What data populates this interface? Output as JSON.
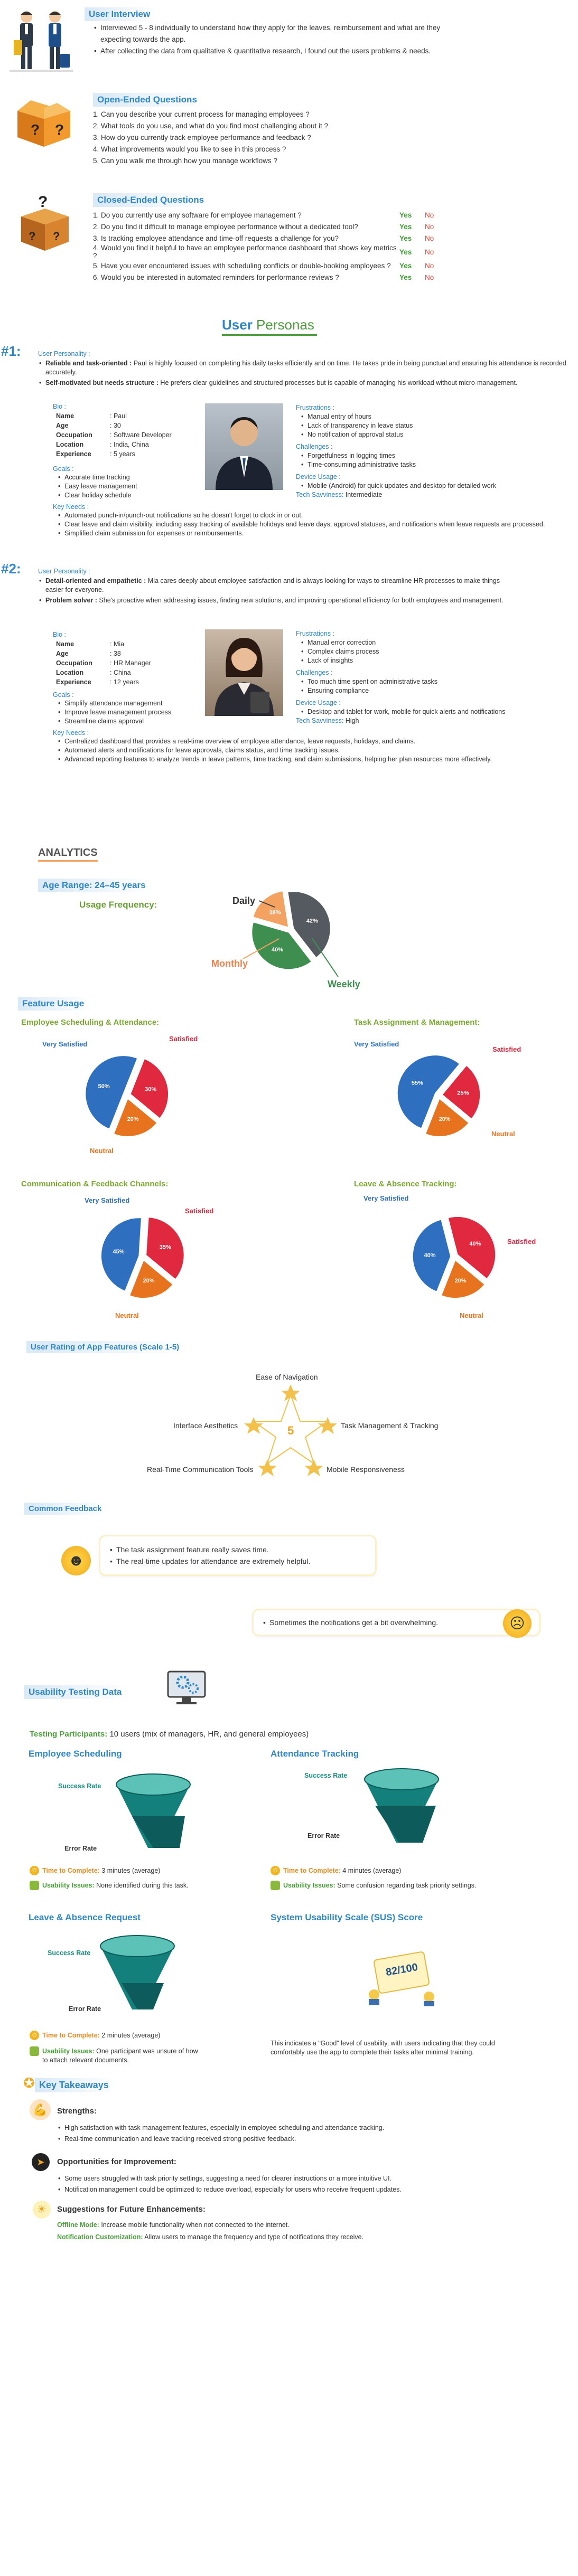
{
  "interview": {
    "title": "User Interview",
    "items": [
      "Interviewed 5 - 8 individually to understand how they apply for the leaves,  reimbursement and what are they expecting towards the app.",
      "After collecting the data from qualitative & quantitative research, I found out  the users problems & needs."
    ]
  },
  "open": {
    "title": "Open-Ended Questions",
    "items": [
      "1. Can you describe your current process for managing employees ?",
      "2. What tools do you use, and what do you find most challenging about it ?",
      "3. How do you currently track employee performance and feedback ?",
      "4. What improvements would you like to see in this process ?",
      "5. Can you walk me through how you manage workflows ?"
    ]
  },
  "closed": {
    "title": "Closed-Ended Questions",
    "yes": "Yes",
    "no": "No",
    "items": [
      "1. Do you currently use any software for employee management ?",
      "2. Do you find it difficult to manage employee performance without a dedicated tool?",
      "3. Is tracking employee attendance and time-off requests a challenge for you?",
      "4. Would you find it helpful to have an employee performance dashboard that shows key metrics ?",
      "5. Have you ever encountered issues with scheduling conflicts or double-booking employees ?",
      "6. Would you be interested in automated reminders for performance reviews ?"
    ]
  },
  "personas": {
    "title_a": "User",
    "title_b": " Personas",
    "p1": {
      "num": "#1:",
      "personality_h": "User Personality :",
      "traits": [
        {
          "b": "Reliable and task-oriented :",
          "t": " Paul is highly focused on completing his daily tasks efficiently and on time. He takes pride in being punctual and ensuring his attendance is recorded accurately."
        },
        {
          "b": "Self-motivated but needs structure :",
          "t": " He prefers clear guidelines and structured processes but is capable of managing his workload without micro-management."
        }
      ],
      "bio_h": "Bio :",
      "bio": [
        [
          "Name",
          ": Paul"
        ],
        [
          "Age",
          ": 30"
        ],
        [
          "Occupation",
          ": Software Developer"
        ],
        [
          "Location",
          ": India, China"
        ],
        [
          "Experience",
          ": 5 years"
        ]
      ],
      "goals_h": "Goals :",
      "goals": [
        "Accurate time tracking",
        "Easy leave management",
        "Clear holiday schedule"
      ],
      "frus_h": "Frustrations :",
      "frus": [
        "Manual entry of hours",
        "Lack of transparency in leave status",
        "No notification of approval status"
      ],
      "chal_h": "Challenges :",
      "chal": [
        "Forgetfulness in logging times",
        "Time-consuming administrative tasks"
      ],
      "dev_h": "Device Usage :",
      "dev": [
        "Mobile (Android) for quick updates and desktop for detailed work"
      ],
      "tech_h": "Tech Savviness:",
      "tech": " Intermediate",
      "needs_h": "Key Needs :",
      "needs": [
        "Automated punch-in/punch-out notifications so he doesn't forget to clock in or out.",
        "Clear leave and claim visibility, including easy tracking of available holidays and leave days, approval statuses, and notifications when leave requests are processed.",
        "Simplified claim submission for expenses or reimbursements."
      ]
    },
    "p2": {
      "num": "#2:",
      "personality_h": "User Personality :",
      "traits": [
        {
          "b": "Detail-oriented and empathetic :",
          "t": " Mia cares deeply about employee satisfaction and is always looking for ways to streamline HR processes to make things easier for everyone."
        },
        {
          "b": "Problem solver :",
          "t": " She's proactive when addressing issues, finding new solutions, and improving operational efficiency for both employees and management."
        }
      ],
      "bio_h": "Bio :",
      "bio": [
        [
          "Name",
          ": Mia"
        ],
        [
          "Age",
          ": 38"
        ],
        [
          "Occupation",
          ": HR Manager"
        ],
        [
          "Location",
          ": China"
        ],
        [
          "Experience",
          ": 12 years"
        ]
      ],
      "goals_h": "Goals :",
      "goals": [
        "Simplify attendance management",
        "Improve leave management process",
        "Streamline claims approval"
      ],
      "frus_h": "Frustrations :",
      "frus": [
        "Manual error correction",
        "Complex claims process",
        "Lack of insights"
      ],
      "chal_h": "Challenges :",
      "chal": [
        "Too much time spent on administrative tasks",
        "Ensuring compliance"
      ],
      "dev_h": "Device Usage :",
      "dev": [
        "Desktop and tablet for work, mobile for quick alerts and notifications"
      ],
      "tech_h": "Tech Savviness:",
      "tech": " High",
      "needs_h": "Key Needs :",
      "needs": [
        "Centralized dashboard that provides a real-time overview of employee attendance, leave requests, holidays, and claims.",
        "Automated alerts and notifications for leave approvals, claims status, and time tracking issues.",
        "Advanced reporting features to analyze trends in leave patterns, time tracking, and claim submissions, helping her plan resources more effectively."
      ]
    }
  },
  "analytics": {
    "title": "ANALYTICS",
    "age": "Age Range: 24–45 years",
    "freq": "Usage Frequency:",
    "freq_labels": {
      "daily": "Daily",
      "monthly": "Monthly",
      "weekly": "Weekly"
    },
    "freq_pcts": [
      "42%",
      "18%",
      "40%"
    ],
    "feature_title": "Feature Usage",
    "pies": [
      {
        "title": "Employee Scheduling & Attendance:",
        "vs": "Very Satisfied",
        "s": "Satisfied",
        "n": "Neutral",
        "pcts": [
          "50%",
          "30%",
          "20%"
        ]
      },
      {
        "title": "Task Assignment & Management:",
        "vs": "Very Satisfied",
        "s": "Satisfied",
        "n": "Neutral",
        "pcts": [
          "55%",
          "25%",
          "20%"
        ]
      },
      {
        "title": "Communication & Feedback Channels:",
        "vs": "Very Satisfied",
        "s": "Satisfied",
        "n": "Neutral",
        "pcts": [
          "45%",
          "35%",
          "20%"
        ]
      },
      {
        "title": "Leave & Absence Tracking:",
        "vs": "Very Satisfied",
        "s": "Satisfied",
        "n": "Neutral",
        "pcts": [
          "40%",
          "40%",
          "20%"
        ]
      }
    ],
    "rating_title": "User Rating of App Features (Scale 1-5)",
    "rating_center": "5",
    "rating_labels": [
      "Ease of Navigation",
      "Task Management & Tracking",
      "Mobile Responsiveness",
      "Real-Time Communication Tools",
      "Interface Aesthetics"
    ],
    "feedback_title": "Common Feedback",
    "fb1": [
      "The task assignment feature really saves time.",
      "The real-time updates for attendance are extremely helpful."
    ],
    "fb2": "Sometimes the notifications get a bit overwhelming."
  },
  "usability": {
    "title": "Usability Testing Data",
    "participants_h": "Testing Participants:",
    "participants": " 10 users (mix of managers, HR, and general employees)",
    "tests": [
      {
        "title": "Employee Scheduling",
        "success": "Success Rate",
        "error": "Error Rate",
        "ttc_h": "Time to Complete:",
        "ttc": " 3 minutes (average)",
        "ui_h": "Usability Issues:",
        "ui": " None identified during this task."
      },
      {
        "title": "Attendance Tracking",
        "success": "Success Rate",
        "error": "Error Rate",
        "ttc_h": "Time to Complete:",
        "ttc": " 4 minutes (average)",
        "ui_h": "Usability Issues:",
        "ui": " Some confusion regarding task priority settings."
      },
      {
        "title": "Leave & Absence Request",
        "success": "Success Rate",
        "error": "Error Rate",
        "ttc_h": "Time to Complete:",
        "ttc": " 2 minutes (average)",
        "ui_h": "Usability Issues:",
        "ui": " One participant was unsure of how to attach relevant documents."
      }
    ],
    "sus_title": "System Usability Scale (SUS) Score",
    "sus_score": "82/100",
    "sus_text": "This indicates a \"Good\" level of usability, with users indicating that they could comfortably use the app to complete their tasks after minimal training."
  },
  "takeaways": {
    "title": "Key Takeaways",
    "strengths_h": "Strengths:",
    "strengths": [
      "High satisfaction with task management features, especially in employee scheduling and attendance tracking.",
      "Real-time communication and leave tracking received strong positive feedback."
    ],
    "improve_h": "Opportunities for Improvement:",
    "improve": [
      "Some users struggled with task priority settings, suggesting a need for clearer instructions or a more intuitive UI.",
      "Notification management could be optimized to reduce overload, especially for users who receive frequent updates."
    ],
    "future_h": "Suggestions for Future Enhancements:",
    "future": [
      {
        "b": "Offline Mode:",
        "t": " Increase mobile functionality when not connected to the internet."
      },
      {
        "b": "Notification Customization:",
        "t": " Allow users to manage the frequency and type of notifications they receive."
      }
    ]
  },
  "chart_data": [
    {
      "type": "pie",
      "title": "Usage Frequency:",
      "categories": [
        "Daily",
        "Weekly",
        "Monthly"
      ],
      "values": [
        42,
        40,
        18
      ]
    },
    {
      "type": "pie",
      "title": "Employee Scheduling & Attendance:",
      "categories": [
        "Very Satisfied",
        "Satisfied",
        "Neutral"
      ],
      "values": [
        50,
        30,
        20
      ]
    },
    {
      "type": "pie",
      "title": "Task Assignment & Management:",
      "categories": [
        "Very Satisfied",
        "Satisfied",
        "Neutral"
      ],
      "values": [
        55,
        25,
        20
      ]
    },
    {
      "type": "pie",
      "title": "Communication & Feedback Channels:",
      "categories": [
        "Very Satisfied",
        "Satisfied",
        "Neutral"
      ],
      "values": [
        45,
        35,
        20
      ]
    },
    {
      "type": "pie",
      "title": "Leave & Absence Tracking:",
      "categories": [
        "Very Satisfied",
        "Satisfied",
        "Neutral"
      ],
      "values": [
        40,
        40,
        20
      ]
    }
  ]
}
